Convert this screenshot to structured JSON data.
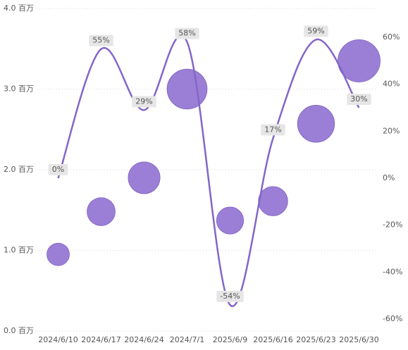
{
  "chart_data": {
    "type": "bubble-line",
    "categories": [
      "2024/6/10",
      "2024/6/17",
      "2024/6/24",
      "2024/7/1",
      "2025/6/9",
      "2025/6/16",
      "2025/6/23",
      "2025/6/30"
    ],
    "series": [
      {
        "type": "bubble",
        "color": "#9b7fd6",
        "values": [
          0.95,
          1.48,
          1.9,
          3.0,
          1.37,
          1.61,
          2.57,
          3.35
        ]
      },
      {
        "type": "line",
        "axis": "y2",
        "color": "#8466c8",
        "values": [
          0,
          55,
          29,
          58,
          -54,
          17,
          59,
          30
        ],
        "value_labels": [
          "0%",
          "55%",
          "29%",
          "58%",
          "-54%",
          "17%",
          "59%",
          "30%"
        ]
      }
    ],
    "ylim": [
      0,
      4
    ],
    "yticks": [
      {
        "value": 0,
        "label": "0.0 百万"
      },
      {
        "value": 1,
        "label": "1.0 百万"
      },
      {
        "value": 2,
        "label": "2.0 百万"
      },
      {
        "value": 3,
        "label": "3.0 百万"
      },
      {
        "value": 4,
        "label": "4.0 百万"
      }
    ],
    "y2lim": [
      -65.1,
      72.3
    ],
    "y2ticks": [
      {
        "value": -60,
        "label": "-60%"
      },
      {
        "value": -40,
        "label": "-40%"
      },
      {
        "value": -20,
        "label": "-20%"
      },
      {
        "value": 0,
        "label": "0%"
      },
      {
        "value": 20,
        "label": "20%"
      },
      {
        "value": 40,
        "label": "40%"
      },
      {
        "value": 60,
        "label": "60%"
      }
    ],
    "grid": true
  }
}
